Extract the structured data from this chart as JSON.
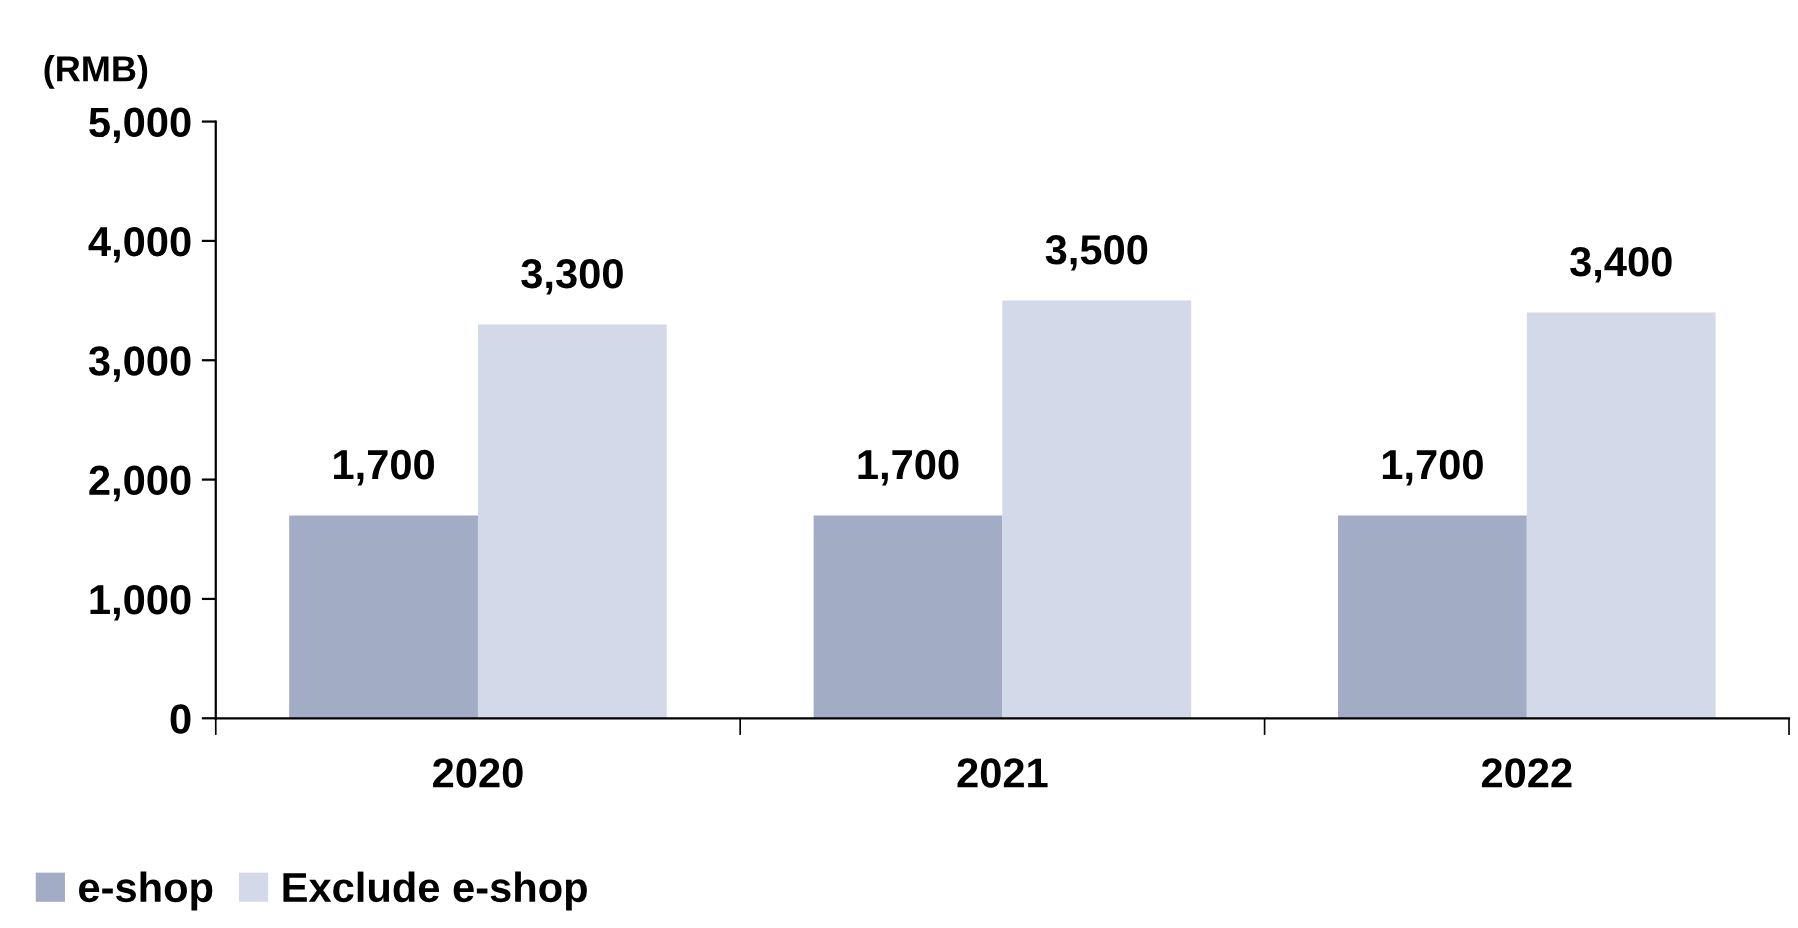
{
  "chart_data": {
    "type": "bar",
    "ylabel": "(RMB)",
    "categories": [
      "2020",
      "2021",
      "2022"
    ],
    "series": [
      {
        "name": "e-shop",
        "color": "#a2acc4",
        "values": [
          1700,
          1700,
          1700
        ],
        "value_labels": [
          "1,700",
          "1,700",
          "1,700"
        ]
      },
      {
        "name": "Exclude e-shop",
        "color": "#d3d9e8",
        "values": [
          3300,
          3500,
          3400
        ],
        "value_labels": [
          "3,300",
          "3,500",
          "3,400"
        ]
      }
    ],
    "ylim": [
      0,
      5000
    ],
    "yticks": [
      {
        "value": 0,
        "label": "0"
      },
      {
        "value": 1000,
        "label": "1,000"
      },
      {
        "value": 2000,
        "label": "2,000"
      },
      {
        "value": 3000,
        "label": "3,000"
      },
      {
        "value": 4000,
        "label": "4,000"
      },
      {
        "value": 5000,
        "label": "5,000"
      }
    ],
    "grid": false,
    "legend": "bottom left"
  }
}
